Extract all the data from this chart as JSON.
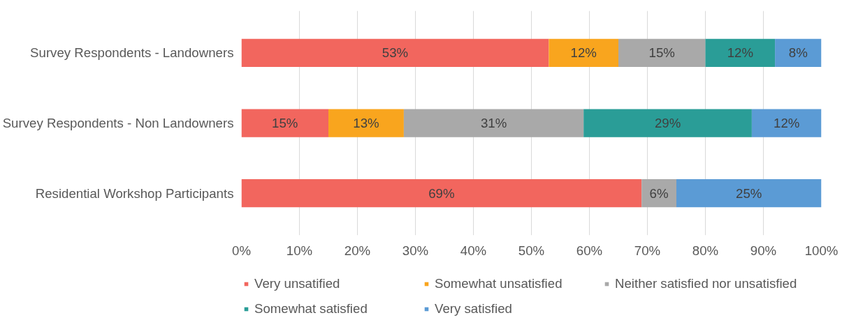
{
  "chart_data": {
    "type": "bar",
    "orientation": "horizontal",
    "stacked": true,
    "grid": "x",
    "legend": "bottom",
    "categories": [
      "Survey Respondents - Landowners",
      "Survey Respondents - Non Landowners",
      "Residential Workshop Participants"
    ],
    "series": [
      {
        "name": "Very unsatified",
        "color": "#f2665e",
        "values": [
          53,
          15,
          69
        ],
        "value_labels": [
          "53%",
          "15%",
          "69%"
        ]
      },
      {
        "name": "Somewhat unsatisfied",
        "color": "#f9a51e",
        "values": [
          12,
          13,
          null
        ],
        "value_labels": [
          "12%",
          "13%",
          null
        ]
      },
      {
        "name": "Neither satisfied nor unsatisfied",
        "color": "#a9a9a9",
        "values": [
          15,
          31,
          6
        ],
        "value_labels": [
          "15%",
          "31%",
          "6%"
        ]
      },
      {
        "name": "Somewhat satisfied",
        "color": "#2a9d97",
        "values": [
          12,
          29,
          null
        ],
        "value_labels": [
          "12%",
          "29%",
          null
        ]
      },
      {
        "name": "Very satisfied",
        "color": "#5b9bd5",
        "values": [
          8,
          12,
          25
        ],
        "value_labels": [
          "8%",
          "12%",
          "25%"
        ]
      }
    ],
    "xlim": [
      0,
      100
    ],
    "xticks": [
      {
        "value": 0,
        "label": "0%"
      },
      {
        "value": 10,
        "label": "10%"
      },
      {
        "value": 20,
        "label": "20%"
      },
      {
        "value": 30,
        "label": "30%"
      },
      {
        "value": 40,
        "label": "40%"
      },
      {
        "value": 50,
        "label": "50%"
      },
      {
        "value": 60,
        "label": "60%"
      },
      {
        "value": 70,
        "label": "70%"
      },
      {
        "value": 80,
        "label": "80%"
      },
      {
        "value": 90,
        "label": "90%"
      },
      {
        "value": 100,
        "label": "100%"
      }
    ]
  }
}
